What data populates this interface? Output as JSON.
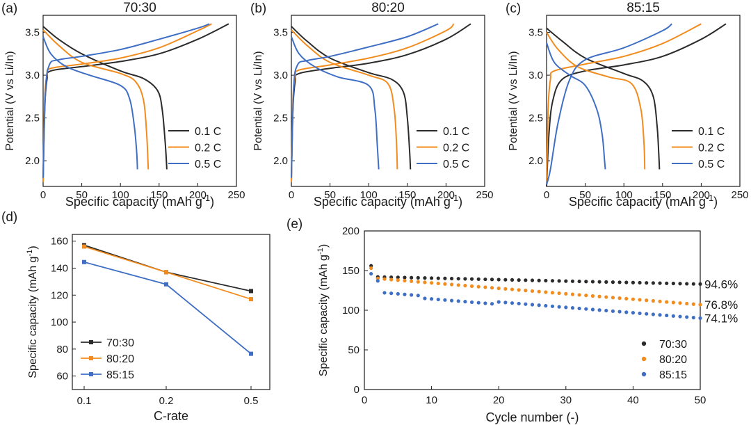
{
  "colors": {
    "c1": "#2b2b2b",
    "c2": "#f28c1e",
    "c3": "#3f6fc4"
  },
  "chart_data": [
    {
      "panel": "(a)",
      "title": "70:30",
      "type": "line",
      "xlabel": "Specific capacity (mAh g⁻¹)",
      "ylabel": "Potential (V vs Li/In)",
      "xlim": [
        0,
        250
      ],
      "ylim": [
        1.7,
        3.7
      ],
      "xticks": [
        "0",
        "50",
        "100",
        "150",
        "200",
        "250"
      ],
      "yticks": [
        "2.0",
        "2.5",
        "3.0",
        "3.5"
      ],
      "legend_position": "bottom-right",
      "series": [
        {
          "name": "0.1 C",
          "color": "#2b2b2b",
          "charge": [
            [
              0,
              1.75
            ],
            [
              2,
              2.6
            ],
            [
              5,
              2.95
            ],
            [
              10,
              3.05
            ],
            [
              50,
              3.1
            ],
            [
              100,
              3.16
            ],
            [
              150,
              3.25
            ],
            [
              200,
              3.42
            ],
            [
              240,
              3.6
            ]
          ],
          "discharge": [
            [
              0,
              3.57
            ],
            [
              20,
              3.42
            ],
            [
              50,
              3.25
            ],
            [
              100,
              3.05
            ],
            [
              130,
              2.96
            ],
            [
              148,
              2.82
            ],
            [
              154,
              2.6
            ],
            [
              158,
              2.2
            ],
            [
              160,
              1.9
            ]
          ]
        },
        {
          "name": "0.2 C",
          "color": "#f28c1e",
          "charge": [
            [
              0,
              1.75
            ],
            [
              2,
              2.7
            ],
            [
              5,
              3.0
            ],
            [
              10,
              3.08
            ],
            [
              50,
              3.13
            ],
            [
              100,
              3.2
            ],
            [
              150,
              3.32
            ],
            [
              200,
              3.52
            ],
            [
              218,
              3.6
            ]
          ],
          "discharge": [
            [
              0,
              3.53
            ],
            [
              20,
              3.35
            ],
            [
              50,
              3.15
            ],
            [
              100,
              3.02
            ],
            [
              120,
              2.92
            ],
            [
              130,
              2.7
            ],
            [
              134,
              2.3
            ],
            [
              136,
              1.9
            ]
          ]
        },
        {
          "name": "0.5 C",
          "color": "#3f6fc4",
          "charge": [
            [
              0,
              1.8
            ],
            [
              3,
              2.8
            ],
            [
              8,
              3.12
            ],
            [
              20,
              3.18
            ],
            [
              50,
              3.22
            ],
            [
              100,
              3.3
            ],
            [
              150,
              3.42
            ],
            [
              200,
              3.55
            ],
            [
              215,
              3.6
            ]
          ],
          "discharge": [
            [
              0,
              3.45
            ],
            [
              10,
              3.25
            ],
            [
              30,
              3.1
            ],
            [
              60,
              3.0
            ],
            [
              100,
              2.88
            ],
            [
              112,
              2.72
            ],
            [
              118,
              2.4
            ],
            [
              121,
              2.1
            ],
            [
              122,
              1.9
            ]
          ]
        }
      ]
    },
    {
      "panel": "(b)",
      "title": "80:20",
      "type": "line",
      "xlabel": "Specific capacity (mAh g⁻¹)",
      "ylabel": "Potential (V vs Li/In)",
      "xlim": [
        0,
        250
      ],
      "ylim": [
        1.7,
        3.7
      ],
      "xticks": [
        "0",
        "50",
        "100",
        "150",
        "200",
        "250"
      ],
      "yticks": [
        "2.0",
        "2.5",
        "3.0",
        "3.5"
      ],
      "legend_position": "bottom-right",
      "series": [
        {
          "name": "0.1 C",
          "color": "#2b2b2b",
          "charge": [
            [
              0,
              1.75
            ],
            [
              2,
              2.6
            ],
            [
              5,
              2.93
            ],
            [
              10,
              3.02
            ],
            [
              50,
              3.08
            ],
            [
              100,
              3.14
            ],
            [
              150,
              3.24
            ],
            [
              200,
              3.42
            ],
            [
              232,
              3.6
            ]
          ],
          "discharge": [
            [
              0,
              3.57
            ],
            [
              20,
              3.4
            ],
            [
              50,
              3.2
            ],
            [
              100,
              3.03
            ],
            [
              130,
              2.95
            ],
            [
              145,
              2.8
            ],
            [
              150,
              2.5
            ],
            [
              153,
              2.1
            ],
            [
              154,
              1.9
            ]
          ]
        },
        {
          "name": "0.2 C",
          "color": "#f28c1e",
          "charge": [
            [
              0,
              1.75
            ],
            [
              2,
              2.7
            ],
            [
              5,
              2.98
            ],
            [
              10,
              3.06
            ],
            [
              50,
              3.12
            ],
            [
              100,
              3.2
            ],
            [
              150,
              3.32
            ],
            [
              200,
              3.52
            ],
            [
              210,
              3.6
            ]
          ],
          "discharge": [
            [
              0,
              3.53
            ],
            [
              20,
              3.35
            ],
            [
              50,
              3.15
            ],
            [
              100,
              3.0
            ],
            [
              125,
              2.9
            ],
            [
              133,
              2.6
            ],
            [
              136,
              2.2
            ],
            [
              137,
              1.9
            ]
          ]
        },
        {
          "name": "0.5 C",
          "color": "#3f6fc4",
          "charge": [
            [
              0,
              1.8
            ],
            [
              3,
              2.85
            ],
            [
              8,
              3.12
            ],
            [
              20,
              3.17
            ],
            [
              50,
              3.22
            ],
            [
              100,
              3.33
            ],
            [
              150,
              3.45
            ],
            [
              190,
              3.6
            ]
          ],
          "discharge": [
            [
              0,
              3.45
            ],
            [
              10,
              3.25
            ],
            [
              30,
              3.1
            ],
            [
              60,
              2.98
            ],
            [
              100,
              2.88
            ],
            [
              108,
              2.6
            ],
            [
              111,
              2.2
            ],
            [
              113,
              1.9
            ]
          ]
        }
      ]
    },
    {
      "panel": "(c)",
      "title": "85:15",
      "type": "line",
      "xlabel": "Specific capacity (mAh g⁻¹)",
      "ylabel": "Potential (V vs Li/In)",
      "xlim": [
        0,
        250
      ],
      "ylim": [
        1.7,
        3.7
      ],
      "xticks": [
        "0",
        "50",
        "100",
        "150",
        "200",
        "250"
      ],
      "yticks": [
        "2.0",
        "2.5",
        "3.0",
        "3.5"
      ],
      "legend_position": "bottom-right",
      "series": [
        {
          "name": "0.1 C",
          "color": "#2b2b2b",
          "charge": [
            [
              0,
              1.7
            ],
            [
              3,
              2.3
            ],
            [
              8,
              2.7
            ],
            [
              20,
              2.95
            ],
            [
              50,
              3.05
            ],
            [
              100,
              3.12
            ],
            [
              150,
              3.22
            ],
            [
              200,
              3.42
            ],
            [
              232,
              3.6
            ]
          ],
          "discharge": [
            [
              0,
              3.55
            ],
            [
              20,
              3.4
            ],
            [
              50,
              3.2
            ],
            [
              100,
              3.02
            ],
            [
              125,
              2.93
            ],
            [
              138,
              2.75
            ],
            [
              143,
              2.4
            ],
            [
              145,
              2.1
            ],
            [
              146,
              1.9
            ]
          ]
        },
        {
          "name": "0.2 C",
          "color": "#f28c1e",
          "charge": [
            [
              0,
              1.72
            ],
            [
              2,
              2.6
            ],
            [
              5,
              2.95
            ],
            [
              10,
              3.05
            ],
            [
              50,
              3.13
            ],
            [
              100,
              3.22
            ],
            [
              150,
              3.37
            ],
            [
              200,
              3.6
            ]
          ],
          "discharge": [
            [
              0,
              3.5
            ],
            [
              15,
              3.3
            ],
            [
              40,
              3.1
            ],
            [
              80,
              2.98
            ],
            [
              110,
              2.9
            ],
            [
              122,
              2.6
            ],
            [
              126,
              2.2
            ],
            [
              127,
              1.9
            ]
          ]
        },
        {
          "name": "0.5 C",
          "color": "#3f6fc4",
          "charge": [
            [
              0,
              1.72
            ],
            [
              5,
              1.9
            ],
            [
              15,
              2.45
            ],
            [
              30,
              2.95
            ],
            [
              50,
              3.18
            ],
            [
              100,
              3.32
            ],
            [
              150,
              3.52
            ],
            [
              162,
              3.6
            ]
          ],
          "discharge": [
            [
              0,
              3.38
            ],
            [
              10,
              3.15
            ],
            [
              30,
              3.0
            ],
            [
              50,
              2.88
            ],
            [
              65,
              2.6
            ],
            [
              72,
              2.3
            ],
            [
              75,
              2.0
            ],
            [
              76,
              1.9
            ]
          ]
        }
      ]
    },
    {
      "panel": "(d)",
      "type": "line",
      "xlabel": "C-rate",
      "ylabel": "Specific capacity (mAh g⁻¹)",
      "categories": [
        "0.1",
        "0.2",
        "0.5"
      ],
      "ylim": [
        50,
        165
      ],
      "yticks": [
        "60",
        "80",
        "100",
        "120",
        "140",
        "160"
      ],
      "legend_position": "bottom-left",
      "series": [
        {
          "name": "70:30",
          "color": "#2b2b2b",
          "values": [
            157,
            137,
            123
          ]
        },
        {
          "name": "80:20",
          "color": "#f28c1e",
          "values": [
            156,
            137,
            117
          ]
        },
        {
          "name": "85:15",
          "color": "#3f6fc4",
          "values": [
            144.5,
            128,
            76.5
          ]
        }
      ]
    },
    {
      "panel": "(e)",
      "type": "scatter",
      "xlabel": "Cycle number (-)",
      "ylabel": "Specific capacity (mAh g⁻¹)",
      "xlim": [
        0,
        50
      ],
      "ylim": [
        0,
        200
      ],
      "xticks": [
        "0",
        "10",
        "20",
        "30",
        "40",
        "50"
      ],
      "yticks": [
        "0",
        "50",
        "100",
        "150",
        "200"
      ],
      "legend_position": "bottom-right",
      "retention_labels": [
        "94.6%",
        "76.8%",
        "74.1%"
      ],
      "series": [
        {
          "name": "70:30",
          "color": "#2b2b2b",
          "start": 156,
          "from2": 142,
          "end": 133
        },
        {
          "name": "80:20",
          "color": "#f28c1e",
          "start": 153,
          "from2": 140,
          "end": 107
        },
        {
          "name": "85:15",
          "color": "#3f6fc4",
          "start": 146,
          "from2": 137,
          "third": 122,
          "end": 90
        }
      ]
    }
  ]
}
